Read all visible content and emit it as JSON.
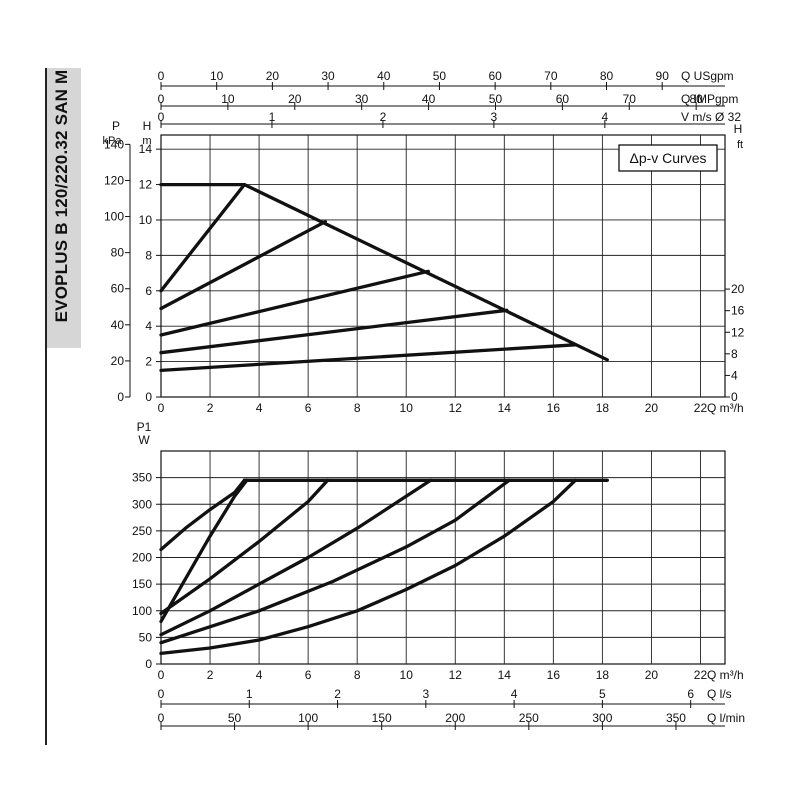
{
  "side_title": "EVOPLUS B 120/220.32 SAN M",
  "legend_label": "Δp-v Curves",
  "chart_data": [
    {
      "type": "line",
      "panel": "head",
      "q_ticks": [
        0,
        2,
        4,
        6,
        8,
        10,
        12,
        14,
        16,
        18,
        20,
        22
      ],
      "q_label": "Q m³/h",
      "xlim": [
        0,
        23
      ],
      "left_axis_p": {
        "label_line1": "P",
        "label_line2": "kPa",
        "ticks": [
          0,
          20,
          40,
          60,
          80,
          100,
          120,
          140
        ]
      },
      "left_axis_h": {
        "label_line1": "H",
        "label_line2": "m",
        "ticks": [
          0,
          2,
          4,
          6,
          8,
          10,
          12,
          14
        ]
      },
      "right_axis_h": {
        "label_line1": "H",
        "label_line2": "ft",
        "ticks": [
          0,
          4,
          8,
          12,
          16,
          20
        ]
      },
      "ylim": [
        0,
        14.8
      ],
      "top_axes": [
        {
          "label": "Q USgpm",
          "ticks": [
            "0",
            "10",
            "20",
            "30",
            "40",
            "50",
            "60",
            "70",
            "80",
            "90"
          ],
          "m3h_per_unit": 0.2271
        },
        {
          "label": "Q IMPgpm",
          "ticks": [
            "0",
            "10",
            "20",
            "30",
            "40",
            "50",
            "60",
            "70",
            "80"
          ],
          "m3h_per_unit": 0.2728
        },
        {
          "label": "V m/s Ø 32",
          "ticks": [
            "0",
            "1",
            "2",
            "3",
            "4"
          ],
          "m3h_per_unit": 4.525
        }
      ],
      "series": [
        {
          "x": [
            0,
            3.4
          ],
          "y": [
            12,
            12
          ]
        },
        {
          "x": [
            3.4,
            18.2
          ],
          "y": [
            12,
            2.1
          ]
        },
        {
          "x": [
            0,
            3.4
          ],
          "y": [
            6,
            12
          ]
        },
        {
          "x": [
            0,
            6.7
          ],
          "y": [
            5,
            9.9
          ]
        },
        {
          "x": [
            0,
            10.9
          ],
          "y": [
            3.5,
            7.1
          ]
        },
        {
          "x": [
            0,
            14.1
          ],
          "y": [
            2.5,
            4.9
          ]
        },
        {
          "x": [
            0,
            16.9
          ],
          "y": [
            1.5,
            2.95
          ]
        }
      ]
    },
    {
      "type": "line",
      "panel": "power",
      "q_ticks": [
        0,
        2,
        4,
        6,
        8,
        10,
        12,
        14,
        16,
        18,
        20,
        22
      ],
      "q_label": "Q m³/h",
      "xlim": [
        0,
        23
      ],
      "left_axis": {
        "label_line1": "P1",
        "label_line2": "W",
        "ticks": [
          0,
          50,
          100,
          150,
          200,
          250,
          300,
          350
        ]
      },
      "ylim": [
        0,
        400
      ],
      "bottom_axes": [
        {
          "label": "Q l/s",
          "ticks": [
            "0",
            "1",
            "2",
            "3",
            "4",
            "5",
            "6"
          ],
          "m3h_per_unit": 3.6
        },
        {
          "label": "Q l/min",
          "ticks": [
            "0",
            "50",
            "100",
            "150",
            "200",
            "250",
            "300",
            "350"
          ],
          "m3h_per_unit": 0.06
        }
      ],
      "series": [
        {
          "x": [
            0,
            1,
            2,
            3,
            3.4
          ],
          "y": [
            215,
            255,
            290,
            322,
            345
          ]
        },
        {
          "x": [
            3.4,
            18.2
          ],
          "y": [
            345,
            345
          ]
        },
        {
          "x": [
            0,
            1,
            2,
            3,
            3.5
          ],
          "y": [
            80,
            160,
            240,
            315,
            345
          ]
        },
        {
          "x": [
            0,
            2,
            4,
            6,
            6.8
          ],
          "y": [
            95,
            160,
            230,
            305,
            345
          ]
        },
        {
          "x": [
            0,
            2,
            4,
            6,
            8,
            11
          ],
          "y": [
            55,
            100,
            150,
            200,
            255,
            345
          ]
        },
        {
          "x": [
            0,
            4,
            7,
            10,
            12,
            14.2
          ],
          "y": [
            40,
            100,
            155,
            220,
            270,
            345
          ]
        },
        {
          "x": [
            0,
            2,
            4,
            6,
            8,
            10,
            12,
            14,
            16,
            16.9
          ],
          "y": [
            20,
            30,
            45,
            70,
            100,
            140,
            185,
            240,
            305,
            345
          ]
        }
      ]
    }
  ]
}
